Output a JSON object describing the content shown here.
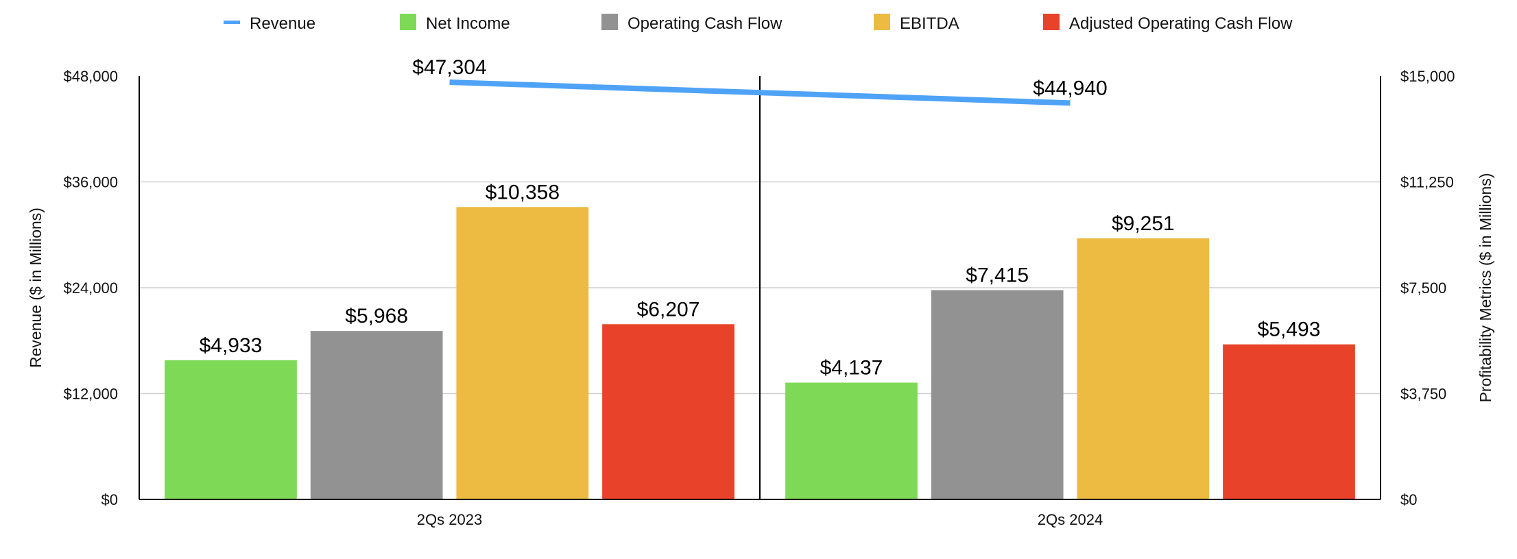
{
  "chart_data": {
    "type": "bar",
    "categories": [
      "2Qs 2023",
      "2Qs 2024"
    ],
    "legend": [
      "Revenue",
      "Net Income",
      "Operating Cash Flow",
      "EBITDA",
      "Adjusted Operating Cash Flow"
    ],
    "line_series": {
      "name": "Revenue",
      "axis": "left",
      "color": "#4FA3F7",
      "values": [
        47304,
        44940
      ],
      "labels": [
        "$47,304",
        "$44,940"
      ]
    },
    "series": [
      {
        "name": "Net Income",
        "axis": "right",
        "color": "#7ED957",
        "values": [
          4933,
          4137
        ],
        "labels": [
          "$4,933",
          "$4,137"
        ]
      },
      {
        "name": "Operating Cash Flow",
        "axis": "right",
        "color": "#929292",
        "values": [
          5968,
          7415
        ],
        "labels": [
          "$5,968",
          "$7,415"
        ]
      },
      {
        "name": "EBITDA",
        "axis": "right",
        "color": "#EDBB41",
        "values": [
          10358,
          9251
        ],
        "labels": [
          "$10,358",
          "$9,251"
        ]
      },
      {
        "name": "Adjusted Operating Cash Flow",
        "axis": "right",
        "color": "#E8432A",
        "values": [
          6207,
          5493
        ],
        "labels": [
          "$6,207",
          "$5,493"
        ]
      }
    ],
    "ylabel": "Revenue ($ in Millions)",
    "y2label": "Profitability Metrics ($ in Millions)",
    "ylim": [
      0,
      48000
    ],
    "y2lim": [
      0,
      15000
    ],
    "yticks": [
      "$0",
      "$12,000",
      "$24,000",
      "$36,000",
      "$48,000"
    ],
    "y2ticks": [
      "$0",
      "$3,750",
      "$7,500",
      "$11,250",
      "$15,000"
    ],
    "grid": true,
    "legend_position": "top"
  }
}
